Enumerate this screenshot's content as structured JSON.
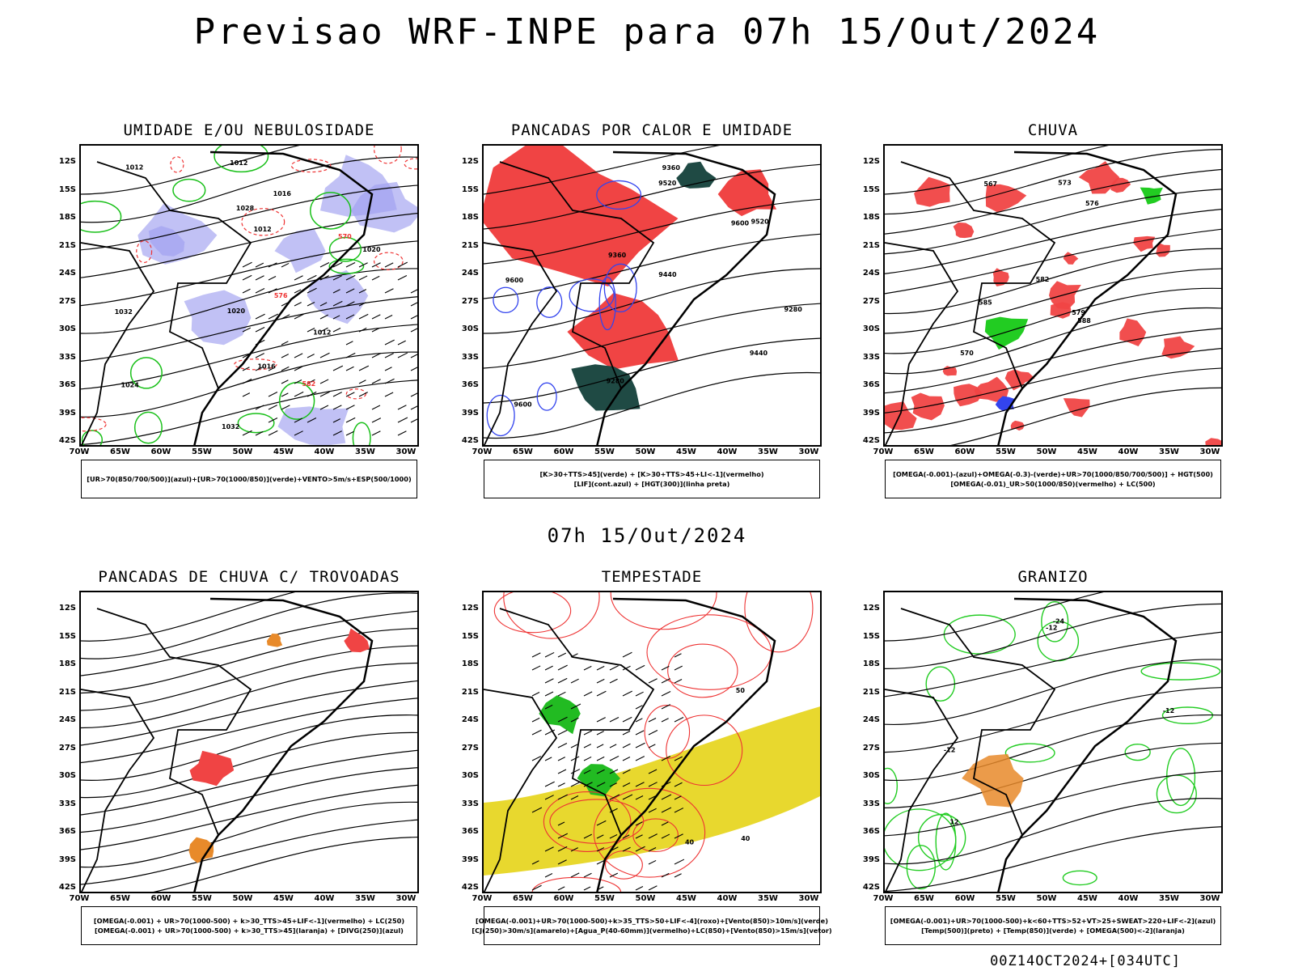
{
  "header": {
    "title": "Previsao WRF-INPE  para 07h 15/Out/2024"
  },
  "mid_label": "07h 15/Out/2024",
  "footer": "00Z14OCT2024+[034UTC]",
  "axes": {
    "lat_labels": [
      "12S",
      "15S",
      "18S",
      "21S",
      "24S",
      "27S",
      "30S",
      "33S",
      "36S",
      "39S",
      "42S"
    ],
    "lon_labels": [
      "70W",
      "65W",
      "60W",
      "55W",
      "50W",
      "45W",
      "40W",
      "35W",
      "30W"
    ]
  },
  "panels": [
    {
      "id": "umidade",
      "title": "UMIDADE E/OU NEBULOSIDADE",
      "legend": [
        "[UR>70(850/700/500)](azul)+[UR>70(1000/850)](verde)+VENTO>5m/s+ESP(500/1000)"
      ],
      "labels": [
        "1012",
        "1012",
        "1012",
        "1016",
        "1020",
        "1020",
        "1024",
        "1028",
        "1032",
        "1032",
        "1016",
        "1012",
        "570",
        "576",
        "582"
      ]
    },
    {
      "id": "pancadas",
      "title": "PANCADAS POR CALOR E UMIDADE",
      "legend": [
        "[K>30+TTS>45](verde) + [K>30+TTS>45+LI<-1](vermelho)",
        "[LIF](cont.azul) + [HGT(300)](linha preta)"
      ],
      "labels": [
        "9600",
        "9600",
        "9520",
        "9440",
        "9360",
        "9280",
        "9440",
        "9360",
        "9280",
        "9600",
        "9520"
      ]
    },
    {
      "id": "chuva",
      "title": "CHUVA",
      "legend": [
        "[OMEGA(-0.001)-(azul)+OMEGA(-0.3)-(verde)+UR>70(1000/850/700/500)] + HGT(500)",
        "[OMEGA(-0.01)_UR>50(1000/850)(vermelho) + LC(500)"
      ],
      "labels": [
        "582",
        "579",
        "576",
        "573",
        "570",
        "567",
        "588",
        "585"
      ]
    },
    {
      "id": "trovoadas",
      "title": "PANCADAS DE CHUVA C/ TROVOADAS",
      "legend": [
        "[OMEGA(-0.001) + UR>70(1000-500) + k>30_TTS>45+LIF<-1](vermelho) + LC(250)",
        "[OMEGA(-0.001) + UR>70(1000-500) + k>30_TTS>45](laranja) + [DIVG(250)](azul)"
      ],
      "labels": []
    },
    {
      "id": "tempestade",
      "title": "TEMPESTADE",
      "legend": [
        "[OMEGA(-0.001)+UR>70(1000-500)+k>35_TTS>50+LIF<-4](roxo)+[Vento(850)>10m/s](verde)",
        "[CJ(250)>30m/s](amarelo)+[Agua_P(40-60mm)](vermelho)+LC(850)+[Vento(850)>15m/s](vetor)"
      ],
      "labels": [
        "40",
        "40",
        "50"
      ]
    },
    {
      "id": "granizo",
      "title": "GRANIZO",
      "legend": [
        "[OMEGA(-0.001)+UR>70(1000-500)+k<60+TTS>52+VT>25+SWEAT>220+LIF<-2](azul)",
        "[Temp(500)](preto) + [Temp(850)](verde) + [OMEGA(500)<-2](laranja)"
      ],
      "labels": [
        "-12",
        "-12",
        "-12",
        "-24",
        "12"
      ]
    }
  ]
}
